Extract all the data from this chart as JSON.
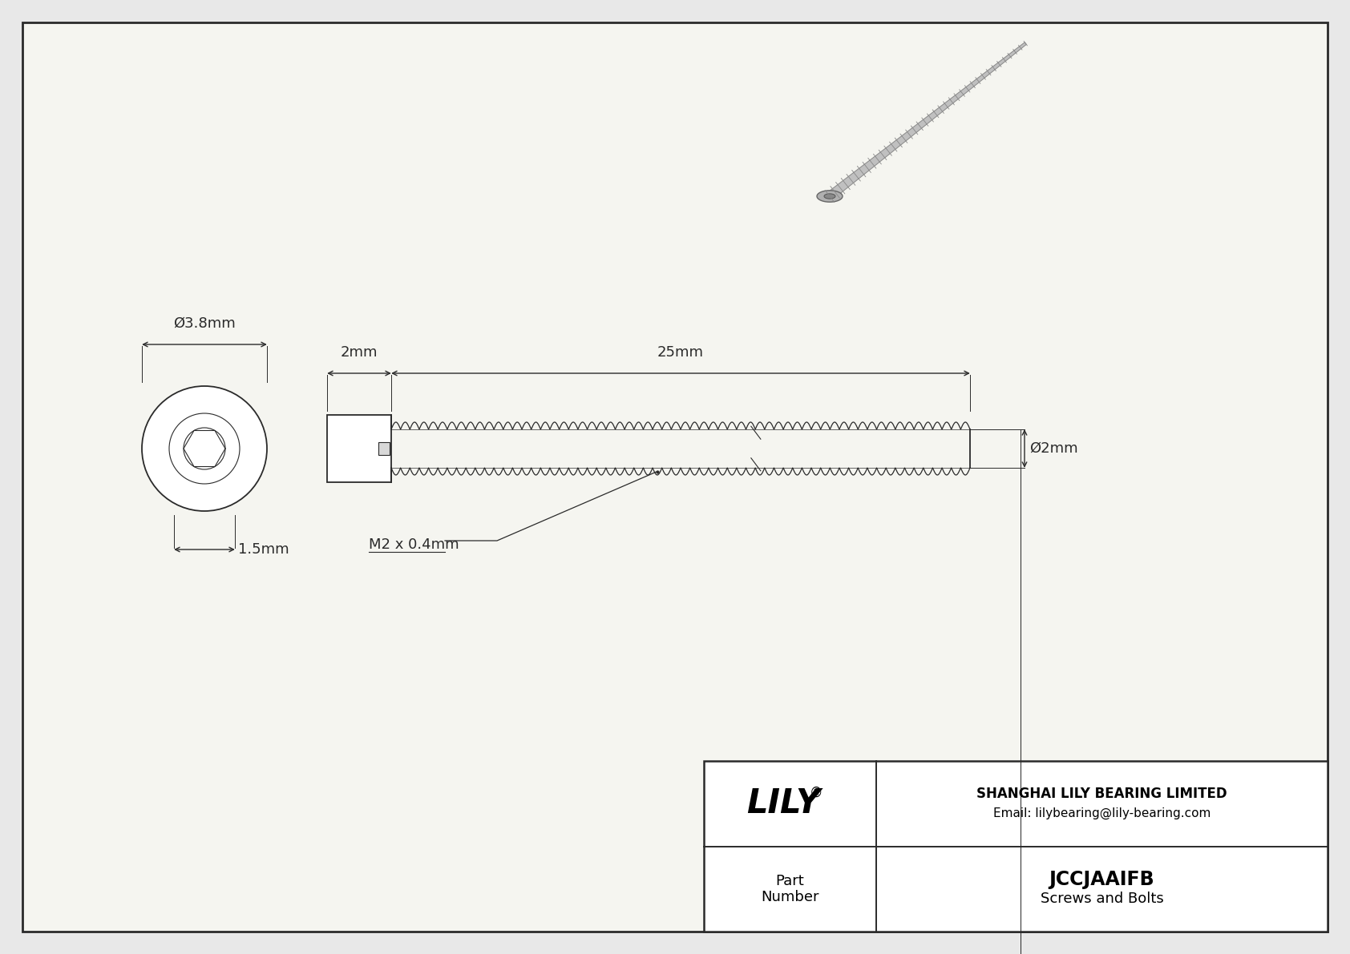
{
  "bg_color": "#e8e8e8",
  "drawing_bg": "#f5f5f0",
  "line_color": "#2a2a2a",
  "title_company": "SHANGHAI LILY BEARING LIMITED",
  "title_email": "Email: lilybearing@lily-bearing.com",
  "part_number": "JCCJAAIFB",
  "part_category": "Screws and Bolts",
  "brand": "LILY",
  "dim_head_length": "2mm",
  "dim_thread_length": "25mm",
  "dim_outer_diameter": "Ø3.8mm",
  "dim_head_thickness": "1.5mm",
  "dim_thread_diameter": "Ø2mm",
  "dim_thread_spec": "M2 x 0.4mm",
  "fig_width": 16.84,
  "fig_height": 11.91,
  "dpi": 100
}
